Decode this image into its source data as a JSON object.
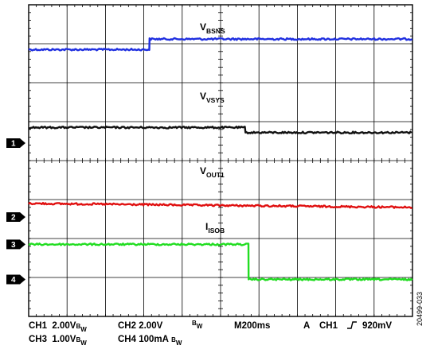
{
  "chart_data": {
    "type": "line",
    "x_divisions": 10,
    "y_divisions": 8,
    "grid": true,
    "series": [
      {
        "name": "V",
        "sub": "BSNS",
        "channel": "CH1",
        "color": "#1f2fe0",
        "levels": [
          {
            "from": 0,
            "to": 3.15,
            "div": 1.15
          },
          {
            "from": 3.15,
            "to": 10,
            "div": 0.88
          }
        ]
      },
      {
        "name": "V",
        "sub": "VSYS",
        "channel": "CH2",
        "color": "#111111",
        "levels": [
          {
            "from": 0,
            "to": 5.65,
            "div": 3.15
          },
          {
            "from": 5.65,
            "to": 10,
            "div": 3.28
          }
        ]
      },
      {
        "name": "V",
        "sub": "OUT1",
        "channel": "CH3",
        "color": "#e01010",
        "levels": [
          {
            "from": 0,
            "to": 10,
            "div": 5.1,
            "slope_div": 0.1
          }
        ]
      },
      {
        "name": "I",
        "sub": "ISOB",
        "channel": "CH4",
        "color": "#22dd22",
        "levels": [
          {
            "from": 0,
            "to": 5.73,
            "div": 6.15
          },
          {
            "from": 5.73,
            "to": 10,
            "div": 7.05
          }
        ]
      }
    ],
    "markers": [
      {
        "label": "1",
        "div": 3.55
      },
      {
        "label": "2",
        "div": 5.45
      },
      {
        "label": "3",
        "div": 6.15
      },
      {
        "label": "4",
        "div": 7.05
      }
    ]
  },
  "settings": {
    "row1": {
      "ch1": "CH1",
      "ch1_scale": "2.00V",
      "ch2": "CH2",
      "ch2_scale": "2.00V",
      "timebase": "M200ms",
      "trigger_mode": "A",
      "trigger_ch": "CH1",
      "trigger_level": "920mV"
    },
    "row2": {
      "ch3": "CH3",
      "ch3_scale": "1.00V",
      "ch4": "CH4",
      "ch4_scale": "100mA"
    },
    "bw_b": "B",
    "bw_w": "W"
  },
  "figure_id": "20499-033"
}
